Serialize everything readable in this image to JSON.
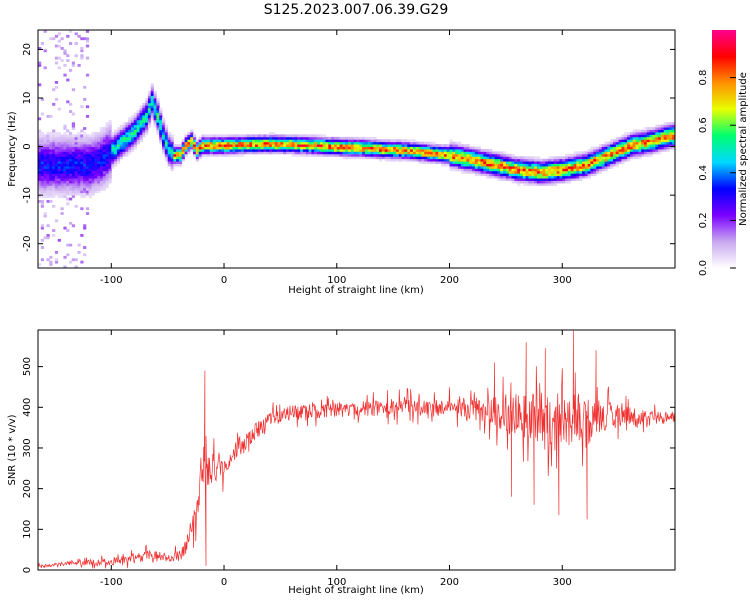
{
  "chart_data": [
    {
      "type": "heatmap",
      "title": "S125.2023.007.06.39.G29",
      "xlabel": "Height of straight line (km)",
      "ylabel": "Frequency (Hz)",
      "xlim": [
        -165,
        400
      ],
      "ylim": [
        -25,
        24
      ],
      "xticks": [
        -100,
        0,
        100,
        200,
        300
      ],
      "yticks": [
        -20,
        -10,
        0,
        10,
        20
      ],
      "colorbar": {
        "label": "Normalized spectral amplitude",
        "range": [
          0,
          1
        ],
        "ticks": [
          0.0,
          0.2,
          0.4,
          0.6,
          0.8
        ],
        "tick_labels": [
          "0.0",
          "0.2",
          "0.4",
          "0.6",
          "0.8"
        ],
        "colormap": [
          "#ffffff",
          "#c9a8f0",
          "#7a00ff",
          "#0000ff",
          "#00d8ff",
          "#00ff70",
          "#e8ff00",
          "#ff9000",
          "#ff0000",
          "#ff0090"
        ]
      },
      "ridge": {
        "x": [
          -120,
          -110,
          -100,
          -90,
          -80,
          -70,
          -65,
          -60,
          -55,
          -50,
          -45,
          -40,
          -35,
          -30,
          -25,
          -20,
          0,
          20,
          40,
          60,
          80,
          100,
          120,
          140,
          160,
          180,
          200,
          220,
          240,
          260,
          280,
          300,
          320,
          340,
          360,
          380,
          395
        ],
        "y": [
          -4,
          -3,
          -1,
          1,
          3,
          6,
          9,
          6,
          2,
          -1,
          -2,
          -2,
          0,
          1,
          -1,
          0,
          0,
          0.2,
          0.3,
          0.2,
          0,
          -0.3,
          -0.5,
          -0.8,
          -1,
          -1.5,
          -2,
          -3,
          -4,
          -5,
          -5.5,
          -5,
          -4,
          -2,
          0,
          1,
          2
        ]
      }
    },
    {
      "type": "line",
      "xlabel": "Height of straight line (km)",
      "ylabel": "SNR (10 * v/v)",
      "xlim": [
        -165,
        400
      ],
      "ylim": [
        0,
        590
      ],
      "xticks": [
        -100,
        0,
        100,
        200,
        300
      ],
      "yticks": [
        0,
        100,
        200,
        300,
        400,
        500
      ],
      "color": "#f03030",
      "series": [
        {
          "x": [
            -165,
            -140,
            -120,
            -100,
            -90,
            -80,
            -70,
            -60,
            -50,
            -40,
            -35,
            -30,
            -25,
            -20,
            -17,
            -15,
            -10,
            0,
            10,
            20,
            30,
            40,
            60,
            80,
            100,
            150,
            200,
            230,
            250,
            270,
            290,
            310,
            330,
            350,
            370,
            400
          ],
          "mean": [
            10,
            15,
            18,
            20,
            25,
            30,
            35,
            35,
            30,
            35,
            50,
            90,
            150,
            200,
            230,
            240,
            250,
            260,
            290,
            320,
            345,
            370,
            385,
            390,
            395,
            400,
            400,
            390,
            385,
            380,
            375,
            370,
            375,
            380,
            375,
            375
          ],
          "amp": [
            8,
            12,
            14,
            18,
            22,
            25,
            30,
            25,
            20,
            30,
            40,
            60,
            80,
            90,
            100,
            90,
            80,
            70,
            60,
            50,
            45,
            40,
            40,
            40,
            40,
            45,
            50,
            60,
            110,
            130,
            150,
            140,
            100,
            60,
            40,
            30
          ],
          "spikes": [
            {
              "x": -17,
              "y": 490
            },
            {
              "x": -16,
              "y": 10
            },
            {
              "x": 268,
              "y": 560
            },
            {
              "x": 275,
              "y": 160
            },
            {
              "x": 285,
              "y": 545
            },
            {
              "x": 297,
              "y": 135
            },
            {
              "x": 310,
              "y": 588
            },
            {
              "x": 322,
              "y": 125
            },
            {
              "x": 330,
              "y": 540
            },
            {
              "x": 255,
              "y": 180
            },
            {
              "x": 240,
              "y": 510
            }
          ]
        }
      ]
    }
  ]
}
